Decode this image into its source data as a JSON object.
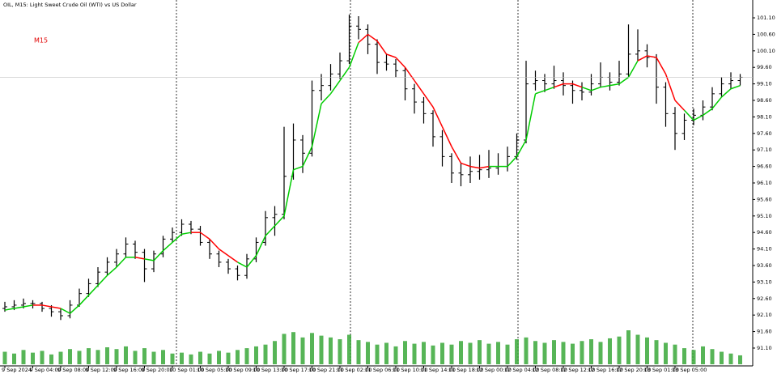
{
  "chart_data": {
    "type": "ohlc",
    "title": "OIL, M15: Light Sweet Crude Oil (WTI) vs US Dollar",
    "timeframe": "M15",
    "bar_color": "#000000",
    "signal_up_color": "#00cc00",
    "signal_down_color": "#ff0000",
    "volume_color": "#3aa83a",
    "ylim": [
      90.56,
      101.64
    ],
    "yticks": [
      {
        "value": 101.1,
        "label": "101.10"
      },
      {
        "value": 100.6,
        "label": "100.60"
      },
      {
        "value": 100.1,
        "label": "100.10"
      },
      {
        "value": 99.6,
        "label": "99.60"
      },
      {
        "value": 99.1,
        "label": "99.10"
      },
      {
        "value": 98.6,
        "label": "98.60"
      },
      {
        "value": 98.1,
        "label": "98.10"
      },
      {
        "value": 97.6,
        "label": "97.60"
      },
      {
        "value": 97.1,
        "label": "97.10"
      },
      {
        "value": 96.6,
        "label": "96.60"
      },
      {
        "value": 96.1,
        "label": "96.10"
      },
      {
        "value": 95.6,
        "label": "95.60"
      },
      {
        "value": 95.1,
        "label": "95.10"
      },
      {
        "value": 94.6,
        "label": "94.60"
      },
      {
        "value": 94.1,
        "label": "94.10"
      },
      {
        "value": 93.6,
        "label": "93.60"
      },
      {
        "value": 93.1,
        "label": "93.10"
      },
      {
        "value": 92.6,
        "label": "92.60"
      },
      {
        "value": 92.1,
        "label": "92.10"
      },
      {
        "value": 91.6,
        "label": "91.60"
      },
      {
        "value": 91.1,
        "label": "91.10"
      }
    ],
    "categories": [
      "9 Sep 2024",
      null,
      null,
      "9 Sep 04:00",
      null,
      null,
      "9 Sep 08:00",
      null,
      null,
      "9 Sep 12:00",
      null,
      null,
      "9 Sep 16:00",
      null,
      null,
      "9 Sep 20:00",
      null,
      null,
      "10 Sep 01:00",
      null,
      null,
      "10 Sep 05:00",
      null,
      null,
      "10 Sep 09:00",
      null,
      null,
      "10 Sep 13:00",
      null,
      null,
      "10 Sep 17:00",
      null,
      null,
      "10 Sep 21:00",
      null,
      null,
      "11 Sep 02:00",
      null,
      null,
      "11 Sep 06:00",
      null,
      null,
      "11 Sep 10:00",
      null,
      null,
      "11 Sep 14:00",
      null,
      null,
      "11 Sep 18:00",
      null,
      null,
      "12 Sep 00:00",
      null,
      null,
      "12 Sep 04:00",
      null,
      null,
      "12 Sep 08:00",
      null,
      null,
      "12 Sep 12:00",
      null,
      null,
      "12 Sep 16:00",
      null,
      null,
      "12 Sep 20:00",
      null,
      null,
      "13 Sep 01:00",
      null,
      null,
      "13 Sep 05:00",
      null,
      null,
      null,
      null,
      null,
      null,
      null
    ],
    "ohlc": [
      [
        92.3,
        92.5,
        92.2,
        92.35
      ],
      [
        92.35,
        92.55,
        92.25,
        92.4
      ],
      [
        92.4,
        92.6,
        92.3,
        92.45
      ],
      [
        92.45,
        92.55,
        92.3,
        92.45
      ],
      [
        92.45,
        92.5,
        92.2,
        92.3
      ],
      [
        92.3,
        92.4,
        92.05,
        92.2
      ],
      [
        92.2,
        92.3,
        91.95,
        92.08
      ],
      [
        92.08,
        92.55,
        92.0,
        92.4
      ],
      [
        92.4,
        92.9,
        92.35,
        92.75
      ],
      [
        92.75,
        93.2,
        92.65,
        93.05
      ],
      [
        93.05,
        93.55,
        92.95,
        93.4
      ],
      [
        93.4,
        93.85,
        93.3,
        93.7
      ],
      [
        93.7,
        94.1,
        93.55,
        93.95
      ],
      [
        93.95,
        94.45,
        93.85,
        94.25
      ],
      [
        94.25,
        94.35,
        93.8,
        94.0
      ],
      [
        94.0,
        94.1,
        93.1,
        93.5
      ],
      [
        93.5,
        94.05,
        93.4,
        93.95
      ],
      [
        93.95,
        94.5,
        93.85,
        94.4
      ],
      [
        94.4,
        94.75,
        94.3,
        94.6
      ],
      [
        94.6,
        95.0,
        94.5,
        94.85
      ],
      [
        94.85,
        94.95,
        94.55,
        94.7
      ],
      [
        94.7,
        94.8,
        94.2,
        94.3
      ],
      [
        94.3,
        94.4,
        93.8,
        93.95
      ],
      [
        93.95,
        94.05,
        93.55,
        93.7
      ],
      [
        93.7,
        93.8,
        93.35,
        93.5
      ],
      [
        93.5,
        93.6,
        93.15,
        93.3
      ],
      [
        93.3,
        93.95,
        93.2,
        93.8
      ],
      [
        93.8,
        94.45,
        93.7,
        94.3
      ],
      [
        94.3,
        95.25,
        94.2,
        95.05
      ],
      [
        95.05,
        95.4,
        94.5,
        95.15
      ],
      [
        95.15,
        97.8,
        95.0,
        96.3
      ],
      [
        96.3,
        97.9,
        96.2,
        97.4
      ],
      [
        97.4,
        97.55,
        96.4,
        97.0
      ],
      [
        97.0,
        99.2,
        96.9,
        98.9
      ],
      [
        98.9,
        99.4,
        98.6,
        99.05
      ],
      [
        99.05,
        99.7,
        98.9,
        99.4
      ],
      [
        99.4,
        100.05,
        99.25,
        99.8
      ],
      [
        99.8,
        101.2,
        99.7,
        100.85
      ],
      [
        100.85,
        101.15,
        100.45,
        100.75
      ],
      [
        100.75,
        100.9,
        100.0,
        100.3
      ],
      [
        100.3,
        100.45,
        99.4,
        99.75
      ],
      [
        99.75,
        100.0,
        99.5,
        99.7
      ],
      [
        99.7,
        99.85,
        99.3,
        99.5
      ],
      [
        99.5,
        99.6,
        98.6,
        98.95
      ],
      [
        98.95,
        99.1,
        98.2,
        98.55
      ],
      [
        98.55,
        98.7,
        97.9,
        98.2
      ],
      [
        98.2,
        98.3,
        97.2,
        97.5
      ],
      [
        97.5,
        97.7,
        96.6,
        96.9
      ],
      [
        96.9,
        97.0,
        96.1,
        96.4
      ],
      [
        96.4,
        96.7,
        96.0,
        96.35
      ],
      [
        96.35,
        96.9,
        96.1,
        96.45
      ],
      [
        96.45,
        96.95,
        96.2,
        96.5
      ],
      [
        96.5,
        97.1,
        96.25,
        96.55
      ],
      [
        96.55,
        97.0,
        96.35,
        96.6
      ],
      [
        96.6,
        97.2,
        96.45,
        96.9
      ],
      [
        96.9,
        97.6,
        96.8,
        97.4
      ],
      [
        97.4,
        99.8,
        97.3,
        99.1
      ],
      [
        99.1,
        99.5,
        98.9,
        99.2
      ],
      [
        99.2,
        99.4,
        98.85,
        99.1
      ],
      [
        99.1,
        99.65,
        98.95,
        99.2
      ],
      [
        99.2,
        99.45,
        98.75,
        99.05
      ],
      [
        99.05,
        99.2,
        98.5,
        98.9
      ],
      [
        98.9,
        99.15,
        98.6,
        98.85
      ],
      [
        98.85,
        99.4,
        98.75,
        99.1
      ],
      [
        99.1,
        99.75,
        99.0,
        99.3
      ],
      [
        99.3,
        99.45,
        98.9,
        99.15
      ],
      [
        99.15,
        99.8,
        99.05,
        99.4
      ],
      [
        99.4,
        100.9,
        99.3,
        100.0
      ],
      [
        100.0,
        100.75,
        99.8,
        100.1
      ],
      [
        100.1,
        100.3,
        99.6,
        99.9
      ],
      [
        99.9,
        100.0,
        98.5,
        99.0
      ],
      [
        99.0,
        99.15,
        97.8,
        98.2
      ],
      [
        98.2,
        98.4,
        97.1,
        97.6
      ],
      [
        97.6,
        98.2,
        97.4,
        98.0
      ],
      [
        98.0,
        98.35,
        97.85,
        98.15
      ],
      [
        98.15,
        98.6,
        98.0,
        98.4
      ],
      [
        98.4,
        99.0,
        98.3,
        98.8
      ],
      [
        98.8,
        99.3,
        98.7,
        99.1
      ],
      [
        99.1,
        99.45,
        98.95,
        99.2
      ],
      [
        99.2,
        99.4,
        99.05,
        99.3
      ]
    ],
    "signal": [
      92.25,
      92.3,
      92.35,
      92.4,
      92.4,
      92.35,
      92.3,
      92.15,
      92.4,
      92.7,
      93.0,
      93.3,
      93.55,
      93.85,
      93.85,
      93.8,
      93.75,
      94.05,
      94.3,
      94.55,
      94.6,
      94.6,
      94.4,
      94.1,
      93.9,
      93.7,
      93.55,
      93.9,
      94.5,
      94.8,
      95.1,
      96.5,
      96.6,
      97.2,
      98.5,
      98.8,
      99.2,
      99.6,
      100.35,
      100.6,
      100.4,
      100.0,
      99.9,
      99.6,
      99.2,
      98.8,
      98.4,
      97.8,
      97.2,
      96.7,
      96.6,
      96.55,
      96.6,
      96.6,
      96.6,
      96.9,
      97.4,
      98.8,
      98.9,
      99.0,
      99.1,
      99.1,
      99.0,
      98.9,
      99.0,
      99.05,
      99.1,
      99.3,
      99.8,
      99.95,
      99.9,
      99.4,
      98.6,
      98.3,
      98.0,
      98.15,
      98.35,
      98.7,
      98.95,
      99.05
    ],
    "volume": [
      14,
      12,
      16,
      13,
      15,
      11,
      14,
      17,
      15,
      18,
      16,
      19,
      17,
      20,
      15,
      18,
      14,
      16,
      12,
      13,
      11,
      14,
      12,
      15,
      13,
      16,
      18,
      20,
      22,
      26,
      34,
      36,
      30,
      35,
      32,
      30,
      28,
      33,
      27,
      25,
      22,
      24,
      20,
      26,
      23,
      25,
      21,
      24,
      22,
      26,
      24,
      27,
      23,
      25,
      22,
      28,
      30,
      26,
      24,
      27,
      25,
      23,
      26,
      28,
      25,
      29,
      31,
      38,
      33,
      30,
      27,
      24,
      22,
      18,
      16,
      20,
      17,
      14,
      12,
      10
    ]
  }
}
